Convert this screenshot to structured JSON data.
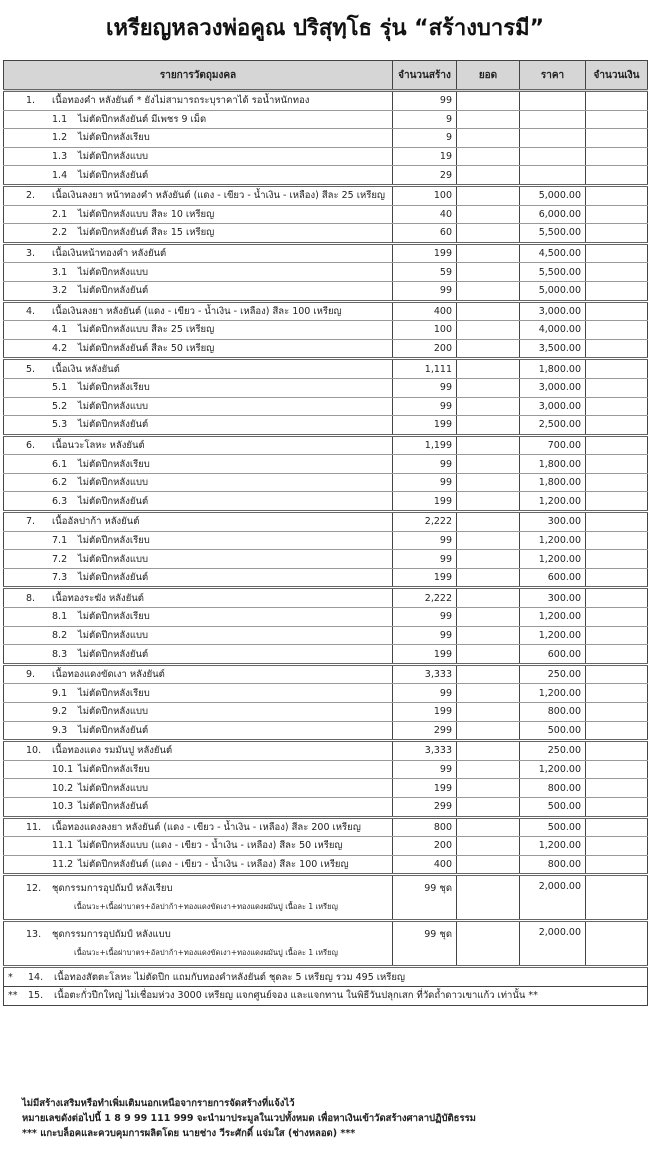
{
  "title": "เหรียญหลวงพ่อคูณ ปริสุทฺโธ รุ่น “สร้างบารมี”",
  "columns": [
    "รายการวัตถุมงคล",
    "จำนวนสร้าง",
    "ยอด",
    "ราคา",
    "จำนวนเงิน"
  ],
  "groups": [
    {
      "no": "1.",
      "label": "เนื้อทองคำ หลังยันต์  * ยังไม่สามารถระบุราคาได้ รอน้ำหนักทอง",
      "qty": "99",
      "price": "",
      "items": [
        {
          "no": "1.1",
          "label": "ไม่ตัดปีกหลังยันต์ มีเพชร 9 เม็ด",
          "qty": "9",
          "price": ""
        },
        {
          "no": "1.2",
          "label": "ไม่ตัดปีกหลังเรียบ",
          "qty": "9",
          "price": ""
        },
        {
          "no": "1.3",
          "label": "ไม่ตัดปีกหลังแบบ",
          "qty": "19",
          "price": ""
        },
        {
          "no": "1.4",
          "label": "ไม่ตัดปีกหลังยันต์",
          "qty": "29",
          "price": ""
        }
      ]
    },
    {
      "no": "2.",
      "label": "เนื้อเงินลงยา หน้าทองคำ หลังยันต์ (แดง - เขียว - น้ำเงิน - เหลือง)  สีละ 25 เหรียญ",
      "qty": "100",
      "price": "5,000.00",
      "items": [
        {
          "no": "2.1",
          "label": "ไม่ตัดปีกหลังแบบ สีละ 10 เหรียญ",
          "qty": "40",
          "price": "6,000.00"
        },
        {
          "no": "2.2",
          "label": "ไม่ตัดปีกหลังยันต์ สีละ 15 เหรียญ",
          "qty": "60",
          "price": "5,500.00"
        }
      ]
    },
    {
      "no": "3.",
      "label": "เนื้อเงินหน้าทองคำ หลังยันต์",
      "qty": "199",
      "price": "4,500.00",
      "items": [
        {
          "no": "3.1",
          "label": "ไม่ตัดปีกหลังแบบ",
          "qty": "59",
          "price": "5,500.00"
        },
        {
          "no": "3.2",
          "label": "ไม่ตัดปีกหลังยันต์",
          "qty": "99",
          "price": "5,000.00"
        }
      ]
    },
    {
      "no": "4.",
      "label": "เนื้อเงินลงยา หลังยันต์ (แดง - เขียว - น้ำเงิน - เหลือง) สีละ 100 เหรียญ",
      "qty": "400",
      "price": "3,000.00",
      "items": [
        {
          "no": "4.1",
          "label": "ไม่ตัดปีกหลังแบบ สีละ 25 เหรียญ",
          "qty": "100",
          "price": "4,000.00"
        },
        {
          "no": "4.2",
          "label": "ไม่ตัดปีกหลังยันต์ สีละ 50 เหรียญ",
          "qty": "200",
          "price": "3,500.00"
        }
      ]
    },
    {
      "no": "5.",
      "label": "เนื้อเงิน หลังยันต์",
      "qty": "1,111",
      "price": "1,800.00",
      "items": [
        {
          "no": "5.1",
          "label": "ไม่ตัดปีกหลังเรียบ",
          "qty": "99",
          "price": "3,000.00"
        },
        {
          "no": "5.2",
          "label": "ไม่ตัดปีกหลังแบบ",
          "qty": "99",
          "price": "3,000.00"
        },
        {
          "no": "5.3",
          "label": "ไม่ตัดปีกหลังยันต์",
          "qty": "199",
          "price": "2,500.00"
        }
      ]
    },
    {
      "no": "6.",
      "label": "เนื้อนวะโลหะ หลังยันต์",
      "qty": "1,199",
      "price": "700.00",
      "items": [
        {
          "no": "6.1",
          "label": "ไม่ตัดปีกหลังเรียบ",
          "qty": "99",
          "price": "1,800.00"
        },
        {
          "no": "6.2",
          "label": "ไม่ตัดปีกหลังแบบ",
          "qty": "99",
          "price": "1,800.00"
        },
        {
          "no": "6.3",
          "label": "ไม่ตัดปีกหลังยันต์",
          "qty": "199",
          "price": "1,200.00"
        }
      ]
    },
    {
      "no": "7.",
      "label": "เนื้ออัลปาก้า หลังยันต์",
      "qty": "2,222",
      "price": "300.00",
      "items": [
        {
          "no": "7.1",
          "label": "ไม่ตัดปีกหลังเรียบ",
          "qty": "99",
          "price": "1,200.00"
        },
        {
          "no": "7.2",
          "label": "ไม่ตัดปีกหลังแบบ",
          "qty": "99",
          "price": "1,200.00"
        },
        {
          "no": "7.3",
          "label": "ไม่ตัดปีกหลังยันต์",
          "qty": "199",
          "price": "600.00"
        }
      ]
    },
    {
      "no": "8.",
      "label": "เนื้อทองระฆัง หลังยันต์",
      "qty": "2,222",
      "price": "300.00",
      "items": [
        {
          "no": "8.1",
          "label": "ไม่ตัดปีกหลังเรียบ",
          "qty": "99",
          "price": "1,200.00"
        },
        {
          "no": "8.2",
          "label": "ไม่ตัดปีกหลังแบบ",
          "qty": "99",
          "price": "1,200.00"
        },
        {
          "no": "8.3",
          "label": "ไม่ตัดปีกหลังยันต์",
          "qty": "199",
          "price": "600.00"
        }
      ]
    },
    {
      "no": "9.",
      "label": "เนื้อทองแดงขัดเงา หลังยันต์",
      "qty": "3,333",
      "price": "250.00",
      "items": [
        {
          "no": "9.1",
          "label": "ไม่ตัดปีกหลังเรียบ",
          "qty": "99",
          "price": "1,200.00"
        },
        {
          "no": "9.2",
          "label": "ไม่ตัดปีกหลังแบบ",
          "qty": "199",
          "price": "800.00"
        },
        {
          "no": "9.3",
          "label": "ไม่ตัดปีกหลังยันต์",
          "qty": "299",
          "price": "500.00"
        }
      ]
    },
    {
      "no": "10.",
      "label": "เนื้อทองแดง รมมันปู หลังยันต์",
      "qty": "3,333",
      "price": "250.00",
      "items": [
        {
          "no": "10.1",
          "label": "ไม่ตัดปีกหลังเรียบ",
          "qty": "99",
          "price": "1,200.00"
        },
        {
          "no": "10.2",
          "label": "ไม่ตัดปีกหลังแบบ",
          "qty": "199",
          "price": "800.00"
        },
        {
          "no": "10.3",
          "label": "ไม่ตัดปีกหลังยันต์",
          "qty": "299",
          "price": "500.00"
        }
      ]
    },
    {
      "no": "11.",
      "label": "เนื้อทองแดงลงยา หลังยันต์ (แดง - เขียว - น้ำเงิน - เหลือง) สีละ 200 เหรียญ",
      "qty": "800",
      "price": "500.00",
      "items": [
        {
          "no": "11.1",
          "label": "ไม่ตัดปีกหลังแบบ (แดง - เขียว - น้ำเงิน - เหลือง) สีละ 50 เหรียญ",
          "qty": "200",
          "price": "1,200.00"
        },
        {
          "no": "11.2",
          "label": "ไม่ตัดปีกหลังยันต์ (แดง - เขียว - น้ำเงิน - เหลือง) สีละ 100 เหรียญ",
          "qty": "400",
          "price": "800.00"
        }
      ]
    }
  ],
  "sets": [
    {
      "no": "12.",
      "label": "ชุดกรรมการอุปถัมป์ หลังเรียบ",
      "sub": "เนื้อนวะ+เนื้อฝาบาตร+อัลปาก้า+ทองแดงขัดเงา+ทองแดงผมันปู เนื้อละ 1 เหรียญ",
      "qty": "99 ชุด",
      "price": "2,000.00"
    },
    {
      "no": "13.",
      "label": "ชุดกรรมการอุปถัมป์ หลังแบบ",
      "sub": "เนื้อนวะ+เนื้อฝาบาตร+อัลปาก้า+ทองแดงขัดเงา+ทองแดงผมันปู เนื้อละ 1 เหรียญ",
      "qty": "99 ชุด",
      "price": "2,000.00"
    }
  ],
  "notes": [
    {
      "prefix": "*",
      "no": "14.",
      "label": "เนื้อทองสัตตะโลหะ ไม่ตัดปีก แถมกับทองคำหลังยันต์ ชุดละ 5 เหรียญ รวม 495 เหรียญ"
    },
    {
      "prefix": "**",
      "no": "15.",
      "label": "เนื้อตะกั่วปีกใหญ่ ไม่เชื่อมห่วง 3000 เหรียญ แจกศูนย์จอง และแจกทาน ในพิธีวันปลุกเสก ที่วัดถ้ำดาวเขาแก้ว เท่านั้น **"
    }
  ],
  "footer": [
    "ไม่มีสร้างเสริมหรือทำเพิ่มเติมนอกเหนือจากรายการจัดสร้างที่แจ้งไว้",
    "หมายเลขดังต่อไปนี้  1 8 9 99 111 999  จะนำมาประมูลในเวปทั้งหมด เพื่อหาเงินเข้าวัดสร้างศาลาปฏิบัติธรรม",
    "*** แกะบล็อคและควบคุมการผลิตโดย นายช่าง วีระศักดิ์ แจ่มใส (ช่างหลอด) ***"
  ]
}
